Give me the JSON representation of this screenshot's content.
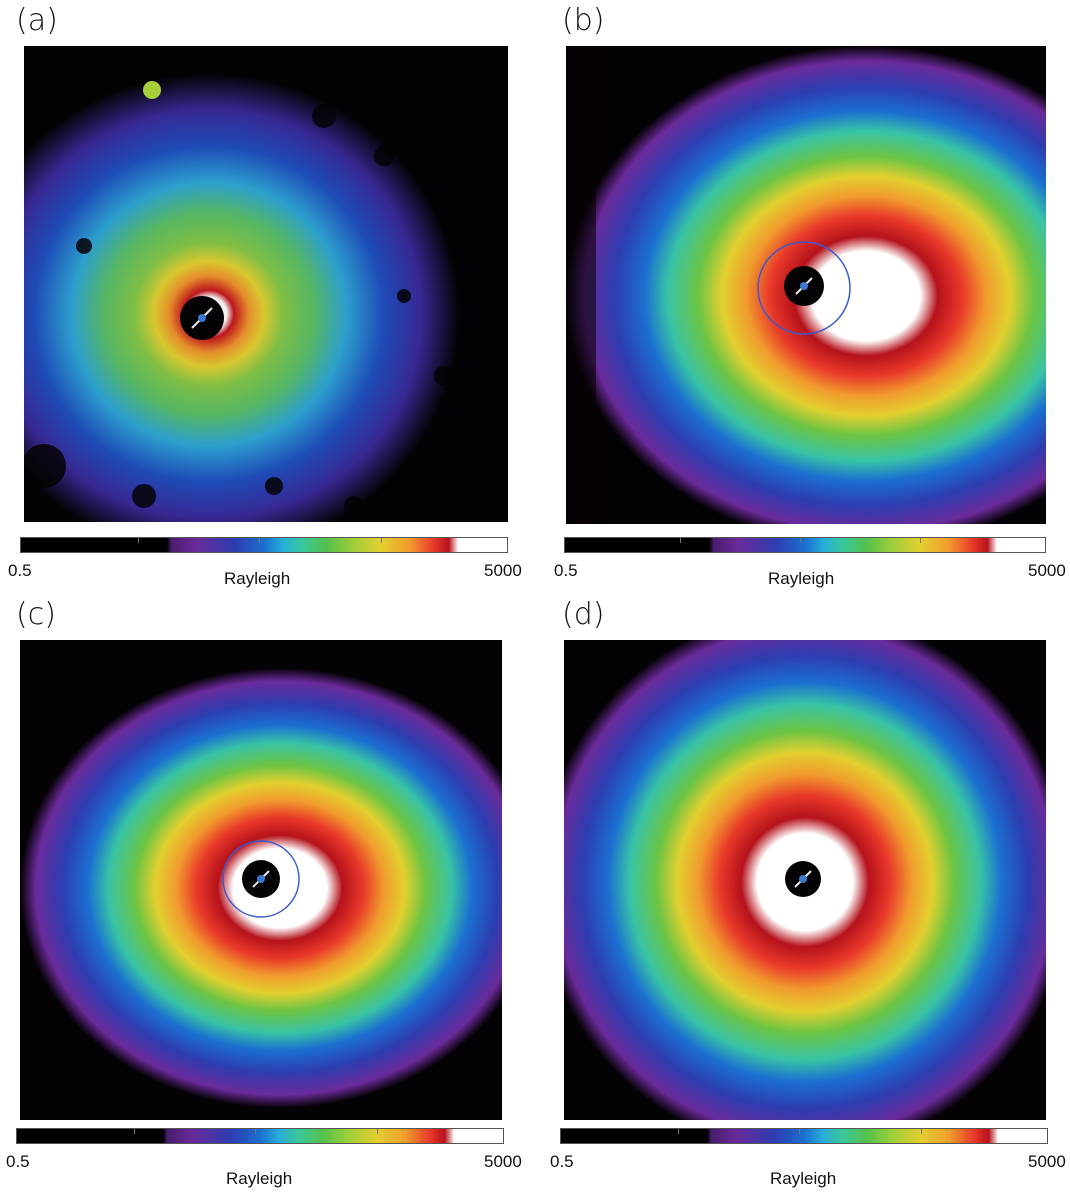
{
  "panels": [
    {
      "id": "a",
      "label": "(a)",
      "colorbar": {
        "min": "0.5",
        "max": "5000",
        "title": "Rayleigh"
      }
    },
    {
      "id": "b",
      "label": "(b)",
      "colorbar": {
        "min": "0.5",
        "max": "5000",
        "title": "Rayleigh"
      }
    },
    {
      "id": "c",
      "label": "(c)",
      "colorbar": {
        "min": "0.5",
        "max": "5000",
        "title": "Rayleigh"
      }
    },
    {
      "id": "d",
      "label": "(d)",
      "colorbar": {
        "min": "0.5",
        "max": "5000",
        "title": "Rayleigh"
      }
    }
  ]
}
